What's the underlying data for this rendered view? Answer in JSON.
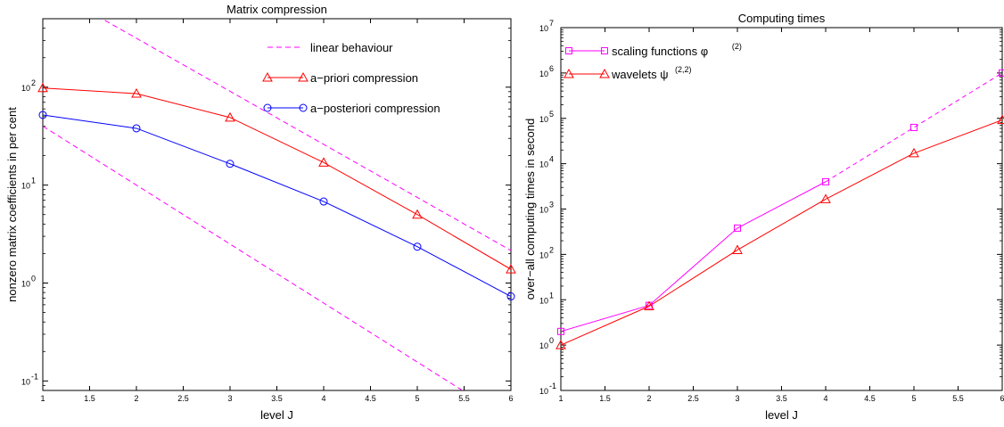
{
  "chart_data": [
    {
      "type": "line",
      "title": "Matrix compression",
      "xlabel": "level J",
      "ylabel": "nonzero matrix coefficients in per cent",
      "xlim": [
        1,
        6
      ],
      "ylim": [
        0.08,
        500
      ],
      "yscale": "log",
      "grid": false,
      "legend_position": "top-right",
      "xticks": [
        "1",
        "1.5",
        "2",
        "2.5",
        "3",
        "3.5",
        "4",
        "4.5",
        "5",
        "5.5",
        "6"
      ],
      "yticks": [
        {
          "value": 0.1,
          "base": "10",
          "exp": "-1"
        },
        {
          "value": 1,
          "base": "10",
          "exp": "0"
        },
        {
          "value": 10,
          "base": "10",
          "exp": "1"
        },
        {
          "value": 100,
          "base": "10",
          "exp": "2"
        }
      ],
      "series": [
        {
          "name": "linear behaviour",
          "style": "dashed",
          "marker": "none",
          "color": "#ff00ff",
          "x": [
            1,
            6
          ],
          "y": [
            1100,
            2.15
          ]
        },
        {
          "name": "linear behaviour",
          "style": "dashed",
          "marker": "none",
          "color": "#ff00ff",
          "legend": false,
          "x": [
            1,
            6
          ],
          "y": [
            40,
            0.039
          ]
        },
        {
          "name": "a−priori compression",
          "style": "solid",
          "marker": "triangle",
          "color": "#ff0000",
          "x": [
            1,
            2,
            3,
            4,
            5,
            6
          ],
          "y": [
            98,
            86,
            49,
            17,
            5,
            1.38
          ]
        },
        {
          "name": "a−posteriori compression",
          "style": "solid",
          "marker": "circle",
          "color": "#0000ff",
          "x": [
            1,
            2,
            3,
            4,
            5,
            6
          ],
          "y": [
            52,
            38,
            16.5,
            6.8,
            2.35,
            0.73
          ]
        }
      ]
    },
    {
      "type": "line",
      "title": "Computing times",
      "xlabel": "level J",
      "ylabel": "over−all computing times in second",
      "xlim": [
        1,
        6
      ],
      "ylim": [
        0.1,
        10000000
      ],
      "yscale": "log",
      "grid": false,
      "legend_position": "top-left",
      "xticks": [
        "1",
        "1.5",
        "2",
        "2.5",
        "3",
        "3.5",
        "4",
        "4.5",
        "5",
        "5.5",
        "6"
      ],
      "yticks": [
        {
          "value": 0.1,
          "base": "10",
          "exp": "-1"
        },
        {
          "value": 1,
          "base": "10",
          "exp": "0"
        },
        {
          "value": 10,
          "base": "10",
          "exp": "1"
        },
        {
          "value": 100,
          "base": "10",
          "exp": "2"
        },
        {
          "value": 1000,
          "base": "10",
          "exp": "3"
        },
        {
          "value": 10000,
          "base": "10",
          "exp": "4"
        },
        {
          "value": 100000,
          "base": "10",
          "exp": "5"
        },
        {
          "value": 1000000,
          "base": "10",
          "exp": "6"
        },
        {
          "value": 10000000,
          "base": "10",
          "exp": "7"
        }
      ],
      "series": [
        {
          "name": "scaling functions φ",
          "sup": "(2)",
          "style": "solid",
          "marker": "square",
          "color": "#ff00ff",
          "dashed_from_index": 3,
          "x": [
            1,
            2,
            3,
            4,
            5,
            6
          ],
          "y": [
            2,
            7.5,
            380,
            4000,
            63000,
            1000000
          ]
        },
        {
          "name": "wavelets ψ",
          "sup": "(2,2)",
          "style": "solid",
          "marker": "triangle",
          "color": "#ff0000",
          "x": [
            1,
            2,
            3,
            4,
            5,
            6
          ],
          "y": [
            1,
            7.2,
            125,
            1650,
            17000,
            92000
          ]
        }
      ]
    }
  ]
}
